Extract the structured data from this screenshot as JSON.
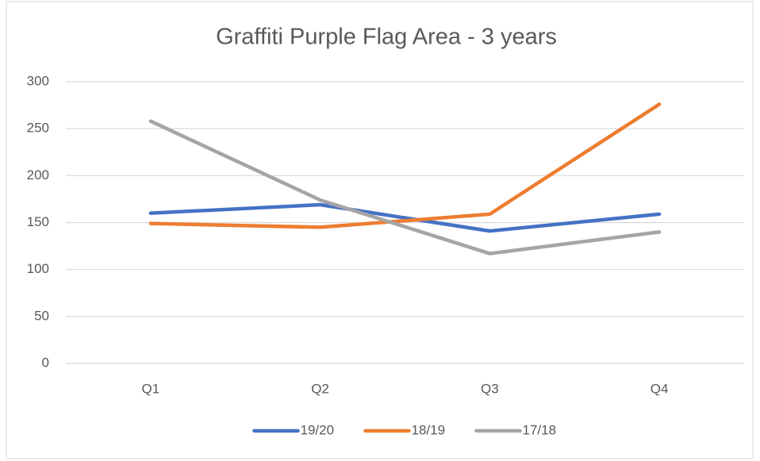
{
  "chart_data": {
    "type": "line",
    "title": "Graffiti Purple Flag Area - 3 years",
    "categories": [
      "Q1",
      "Q2",
      "Q3",
      "Q4"
    ],
    "series": [
      {
        "name": "19/20",
        "color": "#4472c4",
        "values": [
          160,
          169,
          141,
          159
        ]
      },
      {
        "name": "18/19",
        "color": "#ed7d31",
        "values": [
          149,
          145,
          159,
          276
        ]
      },
      {
        "name": "17/18",
        "color": "#a5a5a5",
        "values": [
          258,
          174,
          117,
          140
        ]
      }
    ],
    "ylim": [
      0,
      300
    ],
    "yticks": [
      0,
      50,
      100,
      150,
      200,
      250,
      300
    ],
    "grid": true,
    "legend": "bottom"
  }
}
